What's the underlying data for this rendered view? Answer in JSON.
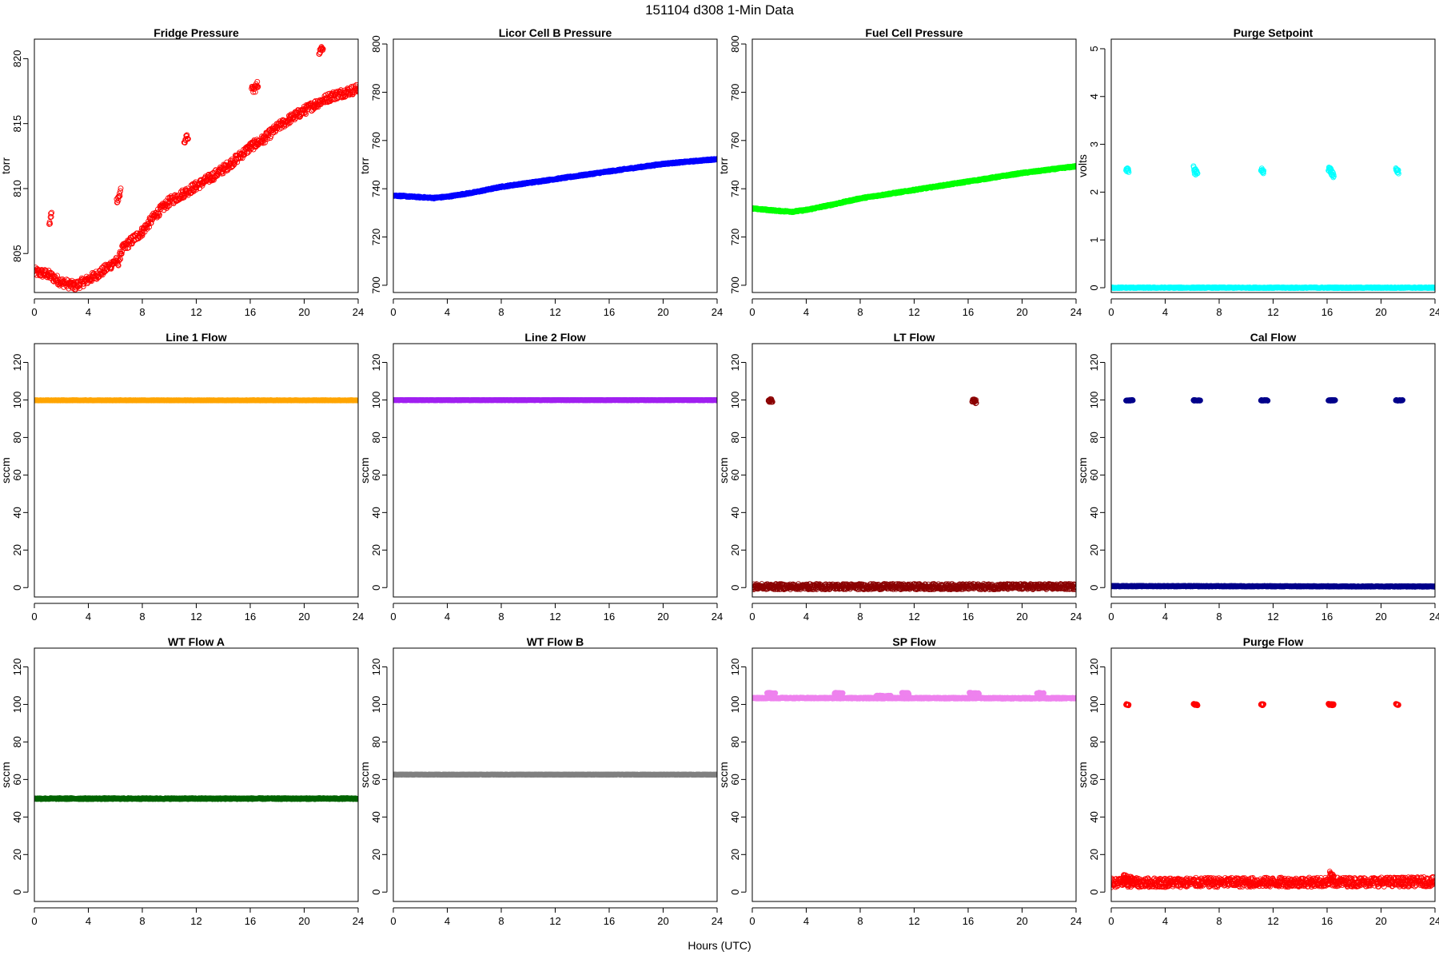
{
  "figure": {
    "title": "151104    d308    1-Min Data",
    "xlabel": "Hours (UTC)"
  },
  "chart_data": [
    {
      "type": "scatter",
      "title": "Fridge Pressure",
      "ylabel": "torr",
      "color": "#ff0000",
      "filled": false,
      "xlim": [
        0,
        24
      ],
      "xticks": [
        0,
        4,
        8,
        12,
        16,
        20,
        24
      ],
      "ylim": [
        802,
        821.5
      ],
      "yticks": [
        805,
        810,
        815,
        820
      ],
      "segments": [
        {
          "points": [
            [
              0,
              803.6
            ],
            [
              1,
              803.4
            ],
            [
              2,
              802.8
            ],
            [
              3,
              802.5
            ],
            [
              4,
              803.0
            ],
            [
              5,
              803.6
            ],
            [
              6,
              804.4
            ],
            [
              6.2,
              804.3
            ],
            [
              6.5,
              805.3
            ],
            [
              7,
              805.8
            ],
            [
              8,
              806.7
            ],
            [
              9,
              808.0
            ],
            [
              10,
              809.0
            ],
            [
              11,
              809.6
            ],
            [
              12,
              810.2
            ],
            [
              13,
              810.8
            ],
            [
              14,
              811.5
            ],
            [
              15,
              812.3
            ],
            [
              16,
              813.2
            ],
            [
              16.5,
              813.5
            ],
            [
              17,
              813.8
            ],
            [
              18,
              814.7
            ],
            [
              19,
              815.4
            ],
            [
              20,
              816.0
            ],
            [
              21,
              816.6
            ],
            [
              22,
              817.1
            ],
            [
              23,
              817.4
            ],
            [
              24,
              817.7
            ]
          ],
          "jitter": 0.35,
          "step": 0.03
        },
        {
          "points": [
            [
              1.1,
              807.3
            ],
            [
              1.3,
              808.2
            ]
          ],
          "jitter": 0.3,
          "step": 0.03
        },
        {
          "points": [
            [
              6.1,
              808.9
            ],
            [
              6.4,
              809.8
            ]
          ],
          "jitter": 0.3,
          "step": 0.03
        },
        {
          "points": [
            [
              11.1,
              813.7
            ],
            [
              11.4,
              814.0
            ]
          ],
          "jitter": 0.25,
          "step": 0.03
        },
        {
          "points": [
            [
              16.1,
              817.5
            ],
            [
              16.6,
              818.0
            ]
          ],
          "jitter": 0.35,
          "step": 0.03
        },
        {
          "points": [
            [
              21.1,
              820.5
            ],
            [
              21.4,
              820.9
            ]
          ],
          "jitter": 0.2,
          "step": 0.03
        }
      ]
    },
    {
      "type": "scatter",
      "title": "Licor Cell B Pressure",
      "ylabel": "torr",
      "color": "#0000ff",
      "filled": true,
      "xlim": [
        0,
        24
      ],
      "xticks": [
        0,
        4,
        8,
        12,
        16,
        20,
        24
      ],
      "ylim": [
        697,
        802
      ],
      "yticks": [
        700,
        720,
        740,
        760,
        780,
        800
      ],
      "segments": [
        {
          "points": [
            [
              0,
              737.2
            ],
            [
              2,
              736.5
            ],
            [
              3,
              736.2
            ],
            [
              4,
              736.7
            ],
            [
              6,
              738.5
            ],
            [
              8,
              740.8
            ],
            [
              12,
              744.0
            ],
            [
              16,
              747.2
            ],
            [
              20,
              750.3
            ],
            [
              24,
              752.3
            ]
          ],
          "jitter": 0.25,
          "step": 0.03
        }
      ]
    },
    {
      "type": "scatter",
      "title": "Fuel Cell Pressure",
      "ylabel": "torr",
      "color": "#00ff00",
      "filled": true,
      "xlim": [
        0,
        24
      ],
      "xticks": [
        0,
        4,
        8,
        12,
        16,
        20,
        24
      ],
      "ylim": [
        697,
        802
      ],
      "yticks": [
        700,
        720,
        740,
        760,
        780,
        800
      ],
      "segments": [
        {
          "points": [
            [
              0,
              731.8
            ],
            [
              2,
              730.8
            ],
            [
              3,
              730.5
            ],
            [
              4,
              731.2
            ],
            [
              6,
              733.5
            ],
            [
              8,
              736.0
            ],
            [
              12,
              739.5
            ],
            [
              16,
              743.0
            ],
            [
              20,
              746.5
            ],
            [
              24,
              749.3
            ]
          ],
          "jitter": 0.25,
          "step": 0.03
        }
      ]
    },
    {
      "type": "scatter",
      "title": "Purge Setpoint",
      "ylabel": "volts",
      "color": "#00ffff",
      "filled": false,
      "xlim": [
        0,
        24
      ],
      "xticks": [
        0,
        4,
        8,
        12,
        16,
        20,
        24
      ],
      "ylim": [
        -0.1,
        5.2
      ],
      "yticks": [
        0,
        1,
        2,
        3,
        4,
        5
      ],
      "segments": [
        {
          "points": [
            [
              0,
              0.0
            ],
            [
              24,
              0.0
            ]
          ],
          "jitter": 0.01,
          "step": 0.03
        },
        {
          "points": [
            [
              1.1,
              2.5
            ],
            [
              1.3,
              2.42
            ]
          ],
          "jitter": 0.05,
          "step": 0.02
        },
        {
          "points": [
            [
              6.1,
              2.48
            ],
            [
              6.4,
              2.38
            ]
          ],
          "jitter": 0.07,
          "step": 0.02
        },
        {
          "points": [
            [
              11.1,
              2.48
            ],
            [
              11.3,
              2.42
            ]
          ],
          "jitter": 0.04,
          "step": 0.02
        },
        {
          "points": [
            [
              16.1,
              2.48
            ],
            [
              16.5,
              2.36
            ]
          ],
          "jitter": 0.07,
          "step": 0.02
        },
        {
          "points": [
            [
              21.1,
              2.48
            ],
            [
              21.3,
              2.42
            ]
          ],
          "jitter": 0.04,
          "step": 0.02
        }
      ]
    },
    {
      "type": "scatter",
      "title": "Line 1 Flow",
      "ylabel": "sccm",
      "color": "#ffa500",
      "filled": true,
      "xlim": [
        0,
        24
      ],
      "xticks": [
        0,
        4,
        8,
        12,
        16,
        20,
        24
      ],
      "ylim": [
        -5,
        130
      ],
      "yticks": [
        0,
        20,
        40,
        60,
        80,
        100,
        120
      ],
      "segments": [
        {
          "points": [
            [
              0,
              99.8
            ],
            [
              24,
              99.8
            ]
          ],
          "jitter": 0.1,
          "step": 0.03
        }
      ]
    },
    {
      "type": "scatter",
      "title": "Line 2 Flow",
      "ylabel": "sccm",
      "color": "#a020f0",
      "filled": true,
      "xlim": [
        0,
        24
      ],
      "xticks": [
        0,
        4,
        8,
        12,
        16,
        20,
        24
      ],
      "ylim": [
        -5,
        130
      ],
      "yticks": [
        0,
        20,
        40,
        60,
        80,
        100,
        120
      ],
      "segments": [
        {
          "points": [
            [
              0,
              99.9
            ],
            [
              24,
              99.9
            ]
          ],
          "jitter": 0.1,
          "step": 0.03
        }
      ]
    },
    {
      "type": "scatter",
      "title": "LT Flow",
      "ylabel": "sccm",
      "color": "#8b0000",
      "filled": false,
      "xlim": [
        0,
        24
      ],
      "xticks": [
        0,
        4,
        8,
        12,
        16,
        20,
        24
      ],
      "ylim": [
        -5,
        130
      ],
      "yticks": [
        0,
        20,
        40,
        60,
        80,
        100,
        120
      ],
      "segments": [
        {
          "points": [
            [
              0,
              0.5
            ],
            [
              24,
              0.5
            ]
          ],
          "jitter": 1.5,
          "step": 0.025
        },
        {
          "points": [
            [
              1.2,
              100.0
            ],
            [
              1.5,
              99.5
            ]
          ],
          "jitter": 1.0,
          "step": 0.02
        },
        {
          "points": [
            [
              16.3,
              100.0
            ],
            [
              16.6,
              99.0
            ]
          ],
          "jitter": 1.0,
          "step": 0.02
        }
      ]
    },
    {
      "type": "scatter",
      "title": "Cal Flow",
      "ylabel": "sccm",
      "color": "#00008b",
      "filled": true,
      "xlim": [
        0,
        24
      ],
      "xticks": [
        0,
        4,
        8,
        12,
        16,
        20,
        24
      ],
      "ylim": [
        -5,
        130
      ],
      "yticks": [
        0,
        20,
        40,
        60,
        80,
        100,
        120
      ],
      "segments": [
        {
          "points": [
            [
              0,
              0.8
            ],
            [
              24,
              0.6
            ]
          ],
          "jitter": 0.2,
          "step": 0.03
        },
        {
          "points": [
            [
              1.1,
              99.8
            ],
            [
              1.6,
              99.8
            ]
          ],
          "jitter": 0.2,
          "step": 0.02
        },
        {
          "points": [
            [
              6.1,
              99.8
            ],
            [
              6.6,
              99.8
            ]
          ],
          "jitter": 0.2,
          "step": 0.02
        },
        {
          "points": [
            [
              11.1,
              99.8
            ],
            [
              11.6,
              99.8
            ]
          ],
          "jitter": 0.2,
          "step": 0.02
        },
        {
          "points": [
            [
              16.1,
              99.8
            ],
            [
              16.6,
              99.8
            ]
          ],
          "jitter": 0.2,
          "step": 0.02
        },
        {
          "points": [
            [
              21.1,
              99.8
            ],
            [
              21.6,
              99.8
            ]
          ],
          "jitter": 0.2,
          "step": 0.02
        }
      ]
    },
    {
      "type": "scatter",
      "title": "WT Flow A",
      "ylabel": "sccm",
      "color": "#006400",
      "filled": true,
      "xlim": [
        0,
        24
      ],
      "xticks": [
        0,
        4,
        8,
        12,
        16,
        20,
        24
      ],
      "ylim": [
        -5,
        130
      ],
      "yticks": [
        0,
        20,
        40,
        60,
        80,
        100,
        120
      ],
      "segments": [
        {
          "points": [
            [
              0,
              49.8
            ],
            [
              24,
              49.8
            ]
          ],
          "jitter": 0.3,
          "step": 0.03
        }
      ]
    },
    {
      "type": "scatter",
      "title": "WT Flow B",
      "ylabel": "sccm",
      "color": "#808080",
      "filled": true,
      "xlim": [
        0,
        24
      ],
      "xticks": [
        0,
        4,
        8,
        12,
        16,
        20,
        24
      ],
      "ylim": [
        -5,
        130
      ],
      "yticks": [
        0,
        20,
        40,
        60,
        80,
        100,
        120
      ],
      "segments": [
        {
          "points": [
            [
              0,
              62.6
            ],
            [
              24,
              62.6
            ]
          ],
          "jitter": 0.1,
          "step": 0.03
        }
      ]
    },
    {
      "type": "scatter",
      "title": "SP Flow",
      "ylabel": "sccm",
      "color": "#ee82ee",
      "filled": true,
      "xlim": [
        0,
        24
      ],
      "xticks": [
        0,
        4,
        8,
        12,
        16,
        20,
        24
      ],
      "ylim": [
        -5,
        130
      ],
      "yticks": [
        0,
        20,
        40,
        60,
        80,
        100,
        120
      ],
      "segments": [
        {
          "points": [
            [
              0,
              103.4
            ],
            [
              24,
              103.3
            ]
          ],
          "jitter": 0.3,
          "step": 0.03
        },
        {
          "points": [
            [
              1.1,
              106.0
            ],
            [
              1.7,
              105.8
            ]
          ],
          "jitter": 0.3,
          "step": 0.02
        },
        {
          "points": [
            [
              6.1,
              106.0
            ],
            [
              6.7,
              105.8
            ]
          ],
          "jitter": 0.3,
          "step": 0.02
        },
        {
          "points": [
            [
              9.2,
              104.5
            ],
            [
              10.3,
              104.5
            ]
          ],
          "jitter": 0.3,
          "step": 0.03
        },
        {
          "points": [
            [
              11.1,
              106.0
            ],
            [
              11.6,
              105.8
            ]
          ],
          "jitter": 0.3,
          "step": 0.02
        },
        {
          "points": [
            [
              16.1,
              106.0
            ],
            [
              16.8,
              105.8
            ]
          ],
          "jitter": 0.3,
          "step": 0.02
        },
        {
          "points": [
            [
              21.1,
              106.0
            ],
            [
              21.6,
              105.8
            ]
          ],
          "jitter": 0.3,
          "step": 0.02
        }
      ]
    },
    {
      "type": "scatter",
      "title": "Purge Flow",
      "ylabel": "sccm",
      "color": "#ff0000",
      "filled": false,
      "xlim": [
        0,
        24
      ],
      "xticks": [
        0,
        4,
        8,
        12,
        16,
        20,
        24
      ],
      "ylim": [
        -5,
        130
      ],
      "yticks": [
        0,
        20,
        40,
        60,
        80,
        100,
        120
      ],
      "segments": [
        {
          "points": [
            [
              0,
              5.0
            ],
            [
              24,
              5.5
            ]
          ],
          "jitter": 2.5,
          "step": 0.025
        },
        {
          "points": [
            [
              0.9,
              8.0
            ],
            [
              1.6,
              6.0
            ]
          ],
          "jitter": 2.0,
          "step": 0.02
        },
        {
          "points": [
            [
              16.2,
              9.0
            ],
            [
              16.5,
              7.0
            ]
          ],
          "jitter": 2.0,
          "step": 0.02
        },
        {
          "points": [
            [
              1.1,
              100.0
            ],
            [
              1.3,
              99.8
            ]
          ],
          "jitter": 0.4,
          "step": 0.015
        },
        {
          "points": [
            [
              6.1,
              100.0
            ],
            [
              6.4,
              99.8
            ]
          ],
          "jitter": 0.4,
          "step": 0.015
        },
        {
          "points": [
            [
              11.1,
              100.0
            ],
            [
              11.3,
              99.8
            ]
          ],
          "jitter": 0.4,
          "step": 0.015
        },
        {
          "points": [
            [
              16.1,
              100.0
            ],
            [
              16.5,
              99.8
            ]
          ],
          "jitter": 0.4,
          "step": 0.015
        },
        {
          "points": [
            [
              21.1,
              100.0
            ],
            [
              21.3,
              99.8
            ]
          ],
          "jitter": 0.4,
          "step": 0.015
        }
      ]
    }
  ]
}
